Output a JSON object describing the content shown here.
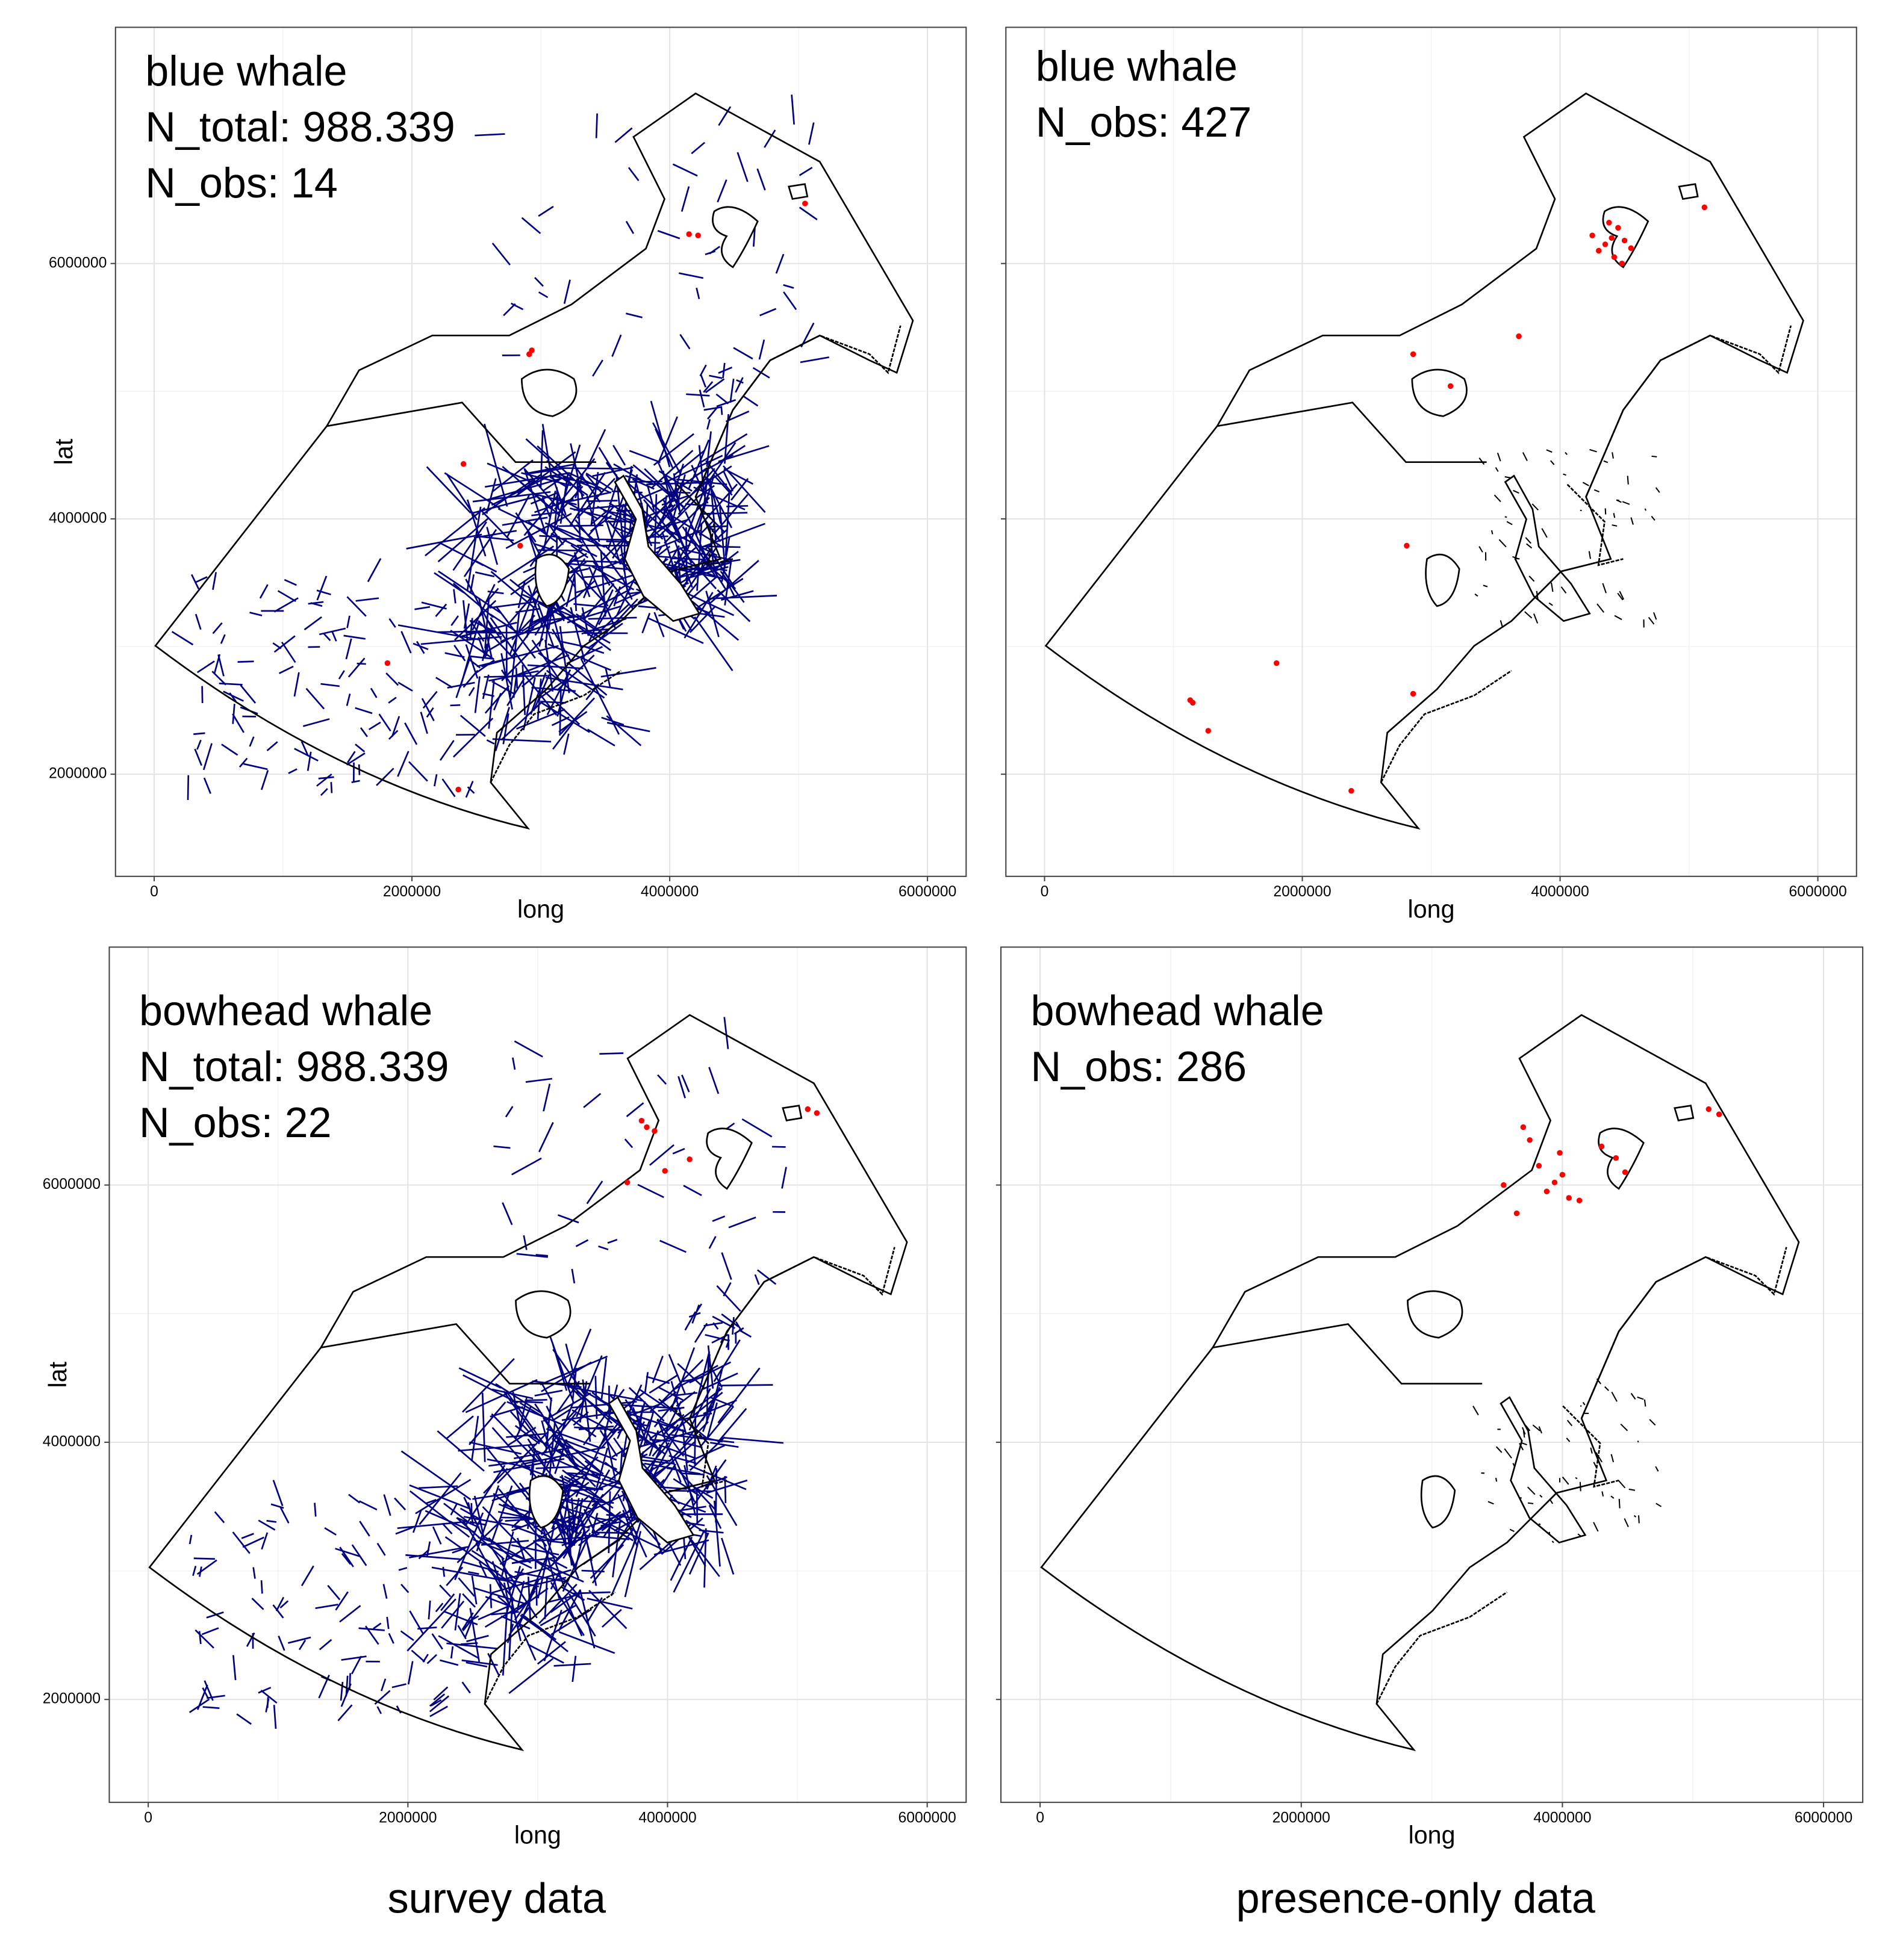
{
  "captions": [
    "survey data",
    "presence-only data"
  ],
  "chart_data": [
    {
      "type": "scatter",
      "annotations": [
        "blue whale",
        "N_total: 988.339",
        "N_obs: 14"
      ],
      "xlabel": "long",
      "ylabel": "lat",
      "xlim": [
        -300000,
        6300000
      ],
      "ylim": [
        1200000,
        7850000
      ],
      "xticks": [
        0,
        2000000,
        4000000,
        6000000
      ],
      "yticks": [
        2000000,
        4000000,
        6000000
      ],
      "ytick_labels": true,
      "grid": true,
      "minor_grid": true,
      "background": "survey",
      "color": "#ff0000",
      "x": [
        4150000,
        4220000,
        2910000,
        2930000,
        2400000,
        2840000,
        1810000,
        2360000,
        5050000
      ],
      "values": [
        6230000,
        6220000,
        5290000,
        5320000,
        4430000,
        3790000,
        2870000,
        1880000,
        6470000
      ]
    },
    {
      "type": "scatter",
      "annotations": [
        "blue whale",
        "N_obs: 427"
      ],
      "xlabel": "long",
      "xlim": [
        -300000,
        6300000
      ],
      "ylim": [
        1200000,
        7850000
      ],
      "xticks": [
        0,
        2000000,
        4000000,
        6000000
      ],
      "yticks": [
        2000000,
        4000000,
        6000000
      ],
      "ytick_labels": false,
      "grid": true,
      "minor_grid": true,
      "background": "presence",
      "color": "#ff0000",
      "x": [
        4400000,
        4350000,
        4450000,
        4300000,
        4500000,
        4380000,
        4420000,
        4250000,
        4550000,
        3680000,
        2860000,
        3150000,
        2810000,
        1130000,
        1270000,
        1800000,
        2860000,
        2380000,
        5120000,
        4480000,
        1150000
      ],
      "values": [
        6200000,
        6150000,
        6280000,
        6100000,
        6180000,
        6320000,
        6050000,
        6220000,
        6120000,
        5430000,
        5290000,
        5040000,
        3790000,
        2580000,
        2340000,
        2870000,
        2630000,
        1870000,
        6440000,
        6000000,
        2560000
      ]
    },
    {
      "type": "scatter",
      "annotations": [
        "bowhead whale",
        "N_total: 988.339",
        "N_obs: 22"
      ],
      "xlabel": "long",
      "ylabel": "lat",
      "xlim": [
        -300000,
        6300000
      ],
      "ylim": [
        1200000,
        7850000
      ],
      "xticks": [
        0,
        2000000,
        4000000,
        6000000
      ],
      "yticks": [
        2000000,
        4000000,
        6000000
      ],
      "ytick_labels": true,
      "grid": true,
      "minor_grid": true,
      "background": "survey",
      "color": "#ff0000",
      "x": [
        3840000,
        3900000,
        3980000,
        4170000,
        5080000,
        5150000,
        3690000,
        3800000
      ],
      "values": [
        6450000,
        6420000,
        6110000,
        6200000,
        6590000,
        6560000,
        6020000,
        6500000
      ]
    },
    {
      "type": "scatter",
      "annotations": [
        "bowhead whale",
        "N_obs: 286"
      ],
      "xlabel": "long",
      "xlim": [
        -300000,
        6300000
      ],
      "ylim": [
        1200000,
        7850000
      ],
      "xticks": [
        0,
        2000000,
        4000000,
        6000000
      ],
      "yticks": [
        2000000,
        4000000,
        6000000
      ],
      "ytick_labels": false,
      "grid": true,
      "minor_grid": true,
      "background": "presence",
      "color": "#ff0000",
      "x": [
        3940000,
        4000000,
        3880000,
        4410000,
        4300000,
        5120000,
        5200000,
        3750000,
        4130000,
        3650000,
        3550000,
        3820000,
        4050000,
        4480000,
        3980000,
        3700000
      ],
      "values": [
        6020000,
        6080000,
        5950000,
        6210000,
        6300000,
        6590000,
        6550000,
        6350000,
        5880000,
        5780000,
        6000000,
        6150000,
        5900000,
        6100000,
        6250000,
        6450000
      ]
    }
  ]
}
